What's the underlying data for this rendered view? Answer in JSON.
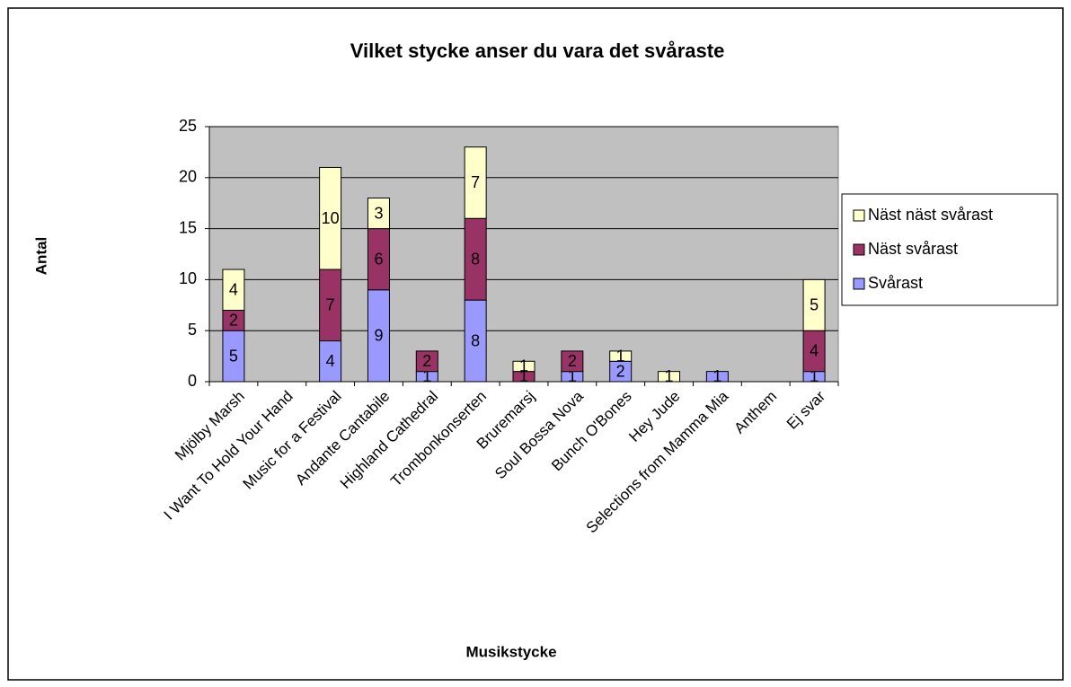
{
  "chart_data": {
    "type": "stacked_bar",
    "title": "Vilket stycke anser du vara det svåraste",
    "x_label": "Musikstycke",
    "y_label": "Antal",
    "categories": [
      "Mjölby Marsh",
      "I Want To Hold Your Hand",
      "Music for a Festival",
      "Andante Cantabile",
      "Highland Cathedral",
      "Trombonkonserten",
      "Bruremarsj",
      "Soul Bossa Nova",
      "Bunch O'Bones",
      "Hey Jude",
      "Selections from Mamma Mia",
      "Anthem",
      "Ej svar"
    ],
    "series": [
      {
        "name": "Svårast",
        "color": "#9999ff",
        "values": [
          5,
          null,
          4,
          9,
          1,
          8,
          null,
          1,
          2,
          null,
          1,
          null,
          1
        ]
      },
      {
        "name": "Näst svårast",
        "color": "#993366",
        "values": [
          2,
          null,
          7,
          6,
          2,
          8,
          1,
          2,
          null,
          null,
          null,
          null,
          4
        ]
      },
      {
        "name": "Näst näst svårast",
        "color": "#ffffcc",
        "values": [
          4,
          null,
          10,
          3,
          null,
          7,
          1,
          null,
          1,
          1,
          null,
          null,
          5
        ]
      }
    ],
    "ylim": [
      0,
      25
    ],
    "yticks": [
      0,
      5,
      10,
      15,
      20,
      25
    ],
    "grid": true,
    "legend": "right"
  }
}
